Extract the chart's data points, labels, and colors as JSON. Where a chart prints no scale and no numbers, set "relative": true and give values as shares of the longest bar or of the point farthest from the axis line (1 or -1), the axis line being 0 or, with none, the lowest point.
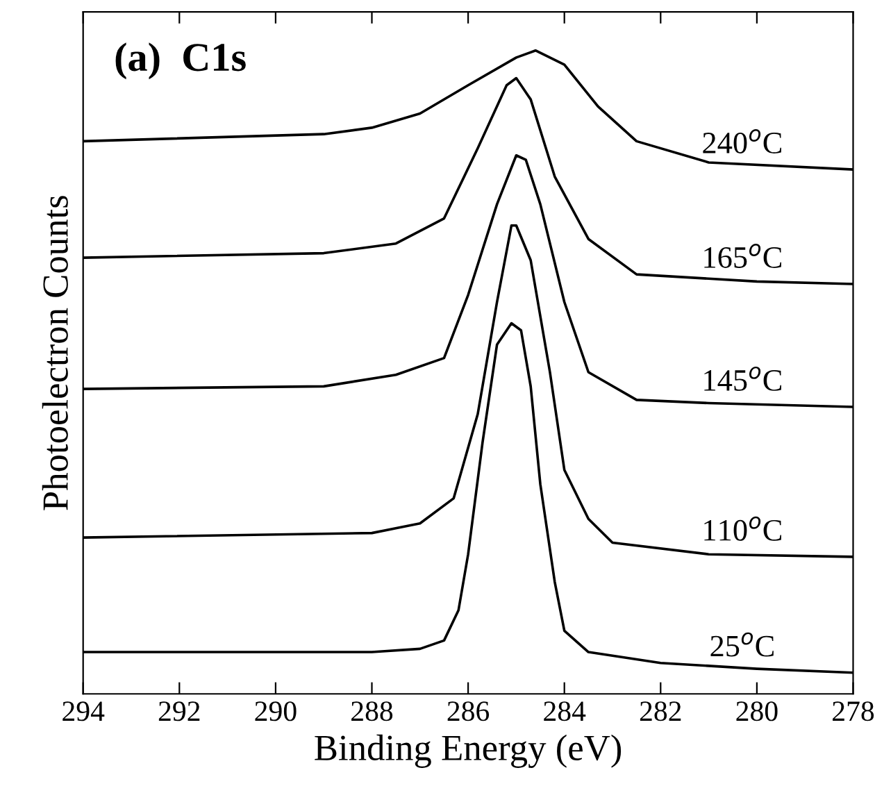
{
  "chart_data": {
    "type": "line",
    "relative": true,
    "xlabel": "Binding Energy (eV)",
    "ylabel": "Photoelectron Counts",
    "annotations": [
      "(a)  C1s"
    ],
    "xlim": [
      294,
      278
    ],
    "xticks": [
      294,
      292,
      290,
      288,
      286,
      284,
      282,
      280,
      278
    ],
    "grid": false,
    "legend": false,
    "marker": "none",
    "line_style": "solid",
    "series": [
      {
        "name": "25$^{o}$C",
        "color": "#000000",
        "x": [
          294,
          290,
          288,
          287,
          286.5,
          286.2,
          286,
          285.7,
          285.4,
          285.1,
          284.9,
          284.7,
          284.5,
          284.2,
          284,
          283.5,
          282,
          280,
          278
        ],
        "values": [
          0.065,
          0.065,
          0.065,
          0.07,
          0.083,
          0.13,
          0.217,
          0.391,
          0.543,
          0.576,
          0.565,
          0.478,
          0.326,
          0.174,
          0.098,
          0.065,
          0.048,
          0.039,
          0.033
        ]
      },
      {
        "name": "110$^{o}$C",
        "color": "#000000",
        "x": [
          294,
          288,
          287,
          286.3,
          285.8,
          285.4,
          285.1,
          285,
          284.7,
          284.3,
          284,
          283.5,
          283,
          281,
          278
        ],
        "values": [
          0.243,
          0.25,
          0.265,
          0.304,
          0.435,
          0.609,
          0.728,
          0.728,
          0.674,
          0.5,
          0.348,
          0.272,
          0.235,
          0.217,
          0.213
        ]
      },
      {
        "name": "145$^{o}$C",
        "color": "#000000",
        "x": [
          294,
          289,
          287.5,
          286.5,
          286,
          285.4,
          285,
          284.8,
          284.5,
          284,
          283.5,
          282.5,
          281,
          278
        ],
        "values": [
          0.474,
          0.478,
          0.496,
          0.522,
          0.62,
          0.761,
          0.837,
          0.83,
          0.761,
          0.609,
          0.5,
          0.457,
          0.452,
          0.446
        ]
      },
      {
        "name": "165$^{o}$C",
        "color": "#000000",
        "x": [
          294,
          289,
          287.5,
          286.5,
          285.8,
          285.2,
          285,
          284.7,
          284.2,
          283.5,
          282.5,
          280,
          278
        ],
        "values": [
          0.678,
          0.685,
          0.7,
          0.739,
          0.848,
          0.946,
          0.957,
          0.924,
          0.804,
          0.707,
          0.652,
          0.641,
          0.637
        ]
      },
      {
        "name": "240$^{o}$C",
        "color": "#000000",
        "x": [
          294,
          289,
          288,
          287,
          286,
          285,
          284.6,
          284,
          283.3,
          282.5,
          281,
          278
        ],
        "values": [
          0.859,
          0.87,
          0.88,
          0.902,
          0.946,
          0.989,
          1.0,
          0.978,
          0.913,
          0.859,
          0.826,
          0.815
        ]
      }
    ]
  }
}
